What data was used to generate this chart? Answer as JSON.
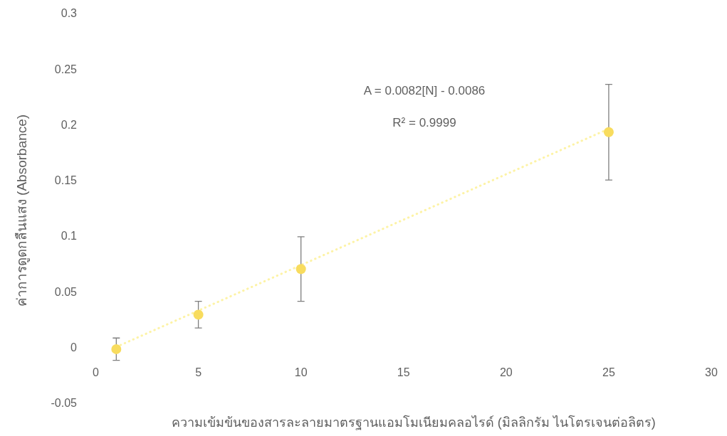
{
  "chart_data": {
    "type": "scatter",
    "xlabel": "ความเข้มข้นของสารละลายมาตรฐานแอมโมเนียมคลอไรด์ (มิลลิกรัม ไนโตรเจนต่อลิตร)",
    "ylabel": "ค่าการดูดกลืนแสง (Absorbance)",
    "xlim": [
      0,
      30
    ],
    "xticks": [
      0,
      5,
      10,
      15,
      20,
      25,
      30
    ],
    "ylim": [
      -0.05,
      0.3
    ],
    "yticks": [
      -0.05,
      0,
      0.05,
      0.1,
      0.15,
      0.2,
      0.25,
      0.3
    ],
    "series": [
      {
        "type": "line",
        "color": "#fdf3a6",
        "x": [
          1,
          25
        ],
        "values": [
          0,
          0.196
        ],
        "line_style": "dotted"
      },
      {
        "type": "scatter",
        "marker": "circle",
        "color": "#f8dc5e",
        "x": [
          1,
          5,
          10,
          25
        ],
        "values": [
          -0.002,
          0.029,
          0.07,
          0.193
        ],
        "errors": [
          0.01,
          0.012,
          0.029,
          0.043
        ]
      }
    ],
    "annotations": [
      "A = 0.0082[N] - 0.0086",
      "R² = 0.9999"
    ]
  }
}
